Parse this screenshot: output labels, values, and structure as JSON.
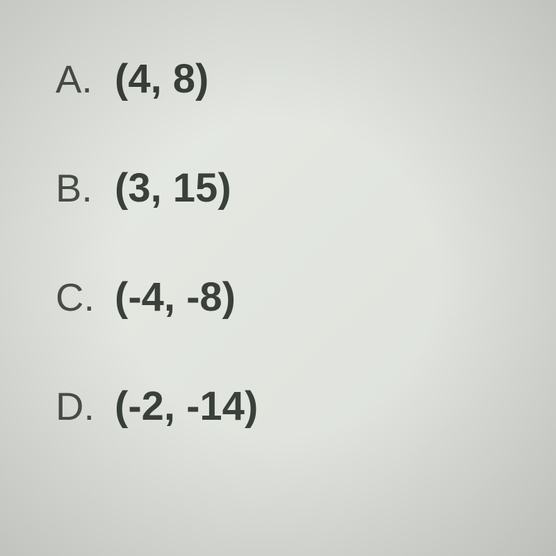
{
  "options": [
    {
      "letter": "A.",
      "value": "(4, 8)"
    },
    {
      "letter": "B.",
      "value": "(3, 15)"
    },
    {
      "letter": "C.",
      "value": "(-4, -8)"
    },
    {
      "letter": "D.",
      "value": "(-2, -14)"
    }
  ],
  "styling": {
    "background_color_start": "#e8ebe5",
    "background_color_end": "#dde0da",
    "letter_color": "#4a5048",
    "value_color": "#3a403a",
    "letter_fontsize": 56,
    "value_fontsize": 58,
    "letter_weight": 400,
    "value_weight": 700,
    "row_gap": 90,
    "font_family": "Arial, Helvetica, sans-serif"
  }
}
